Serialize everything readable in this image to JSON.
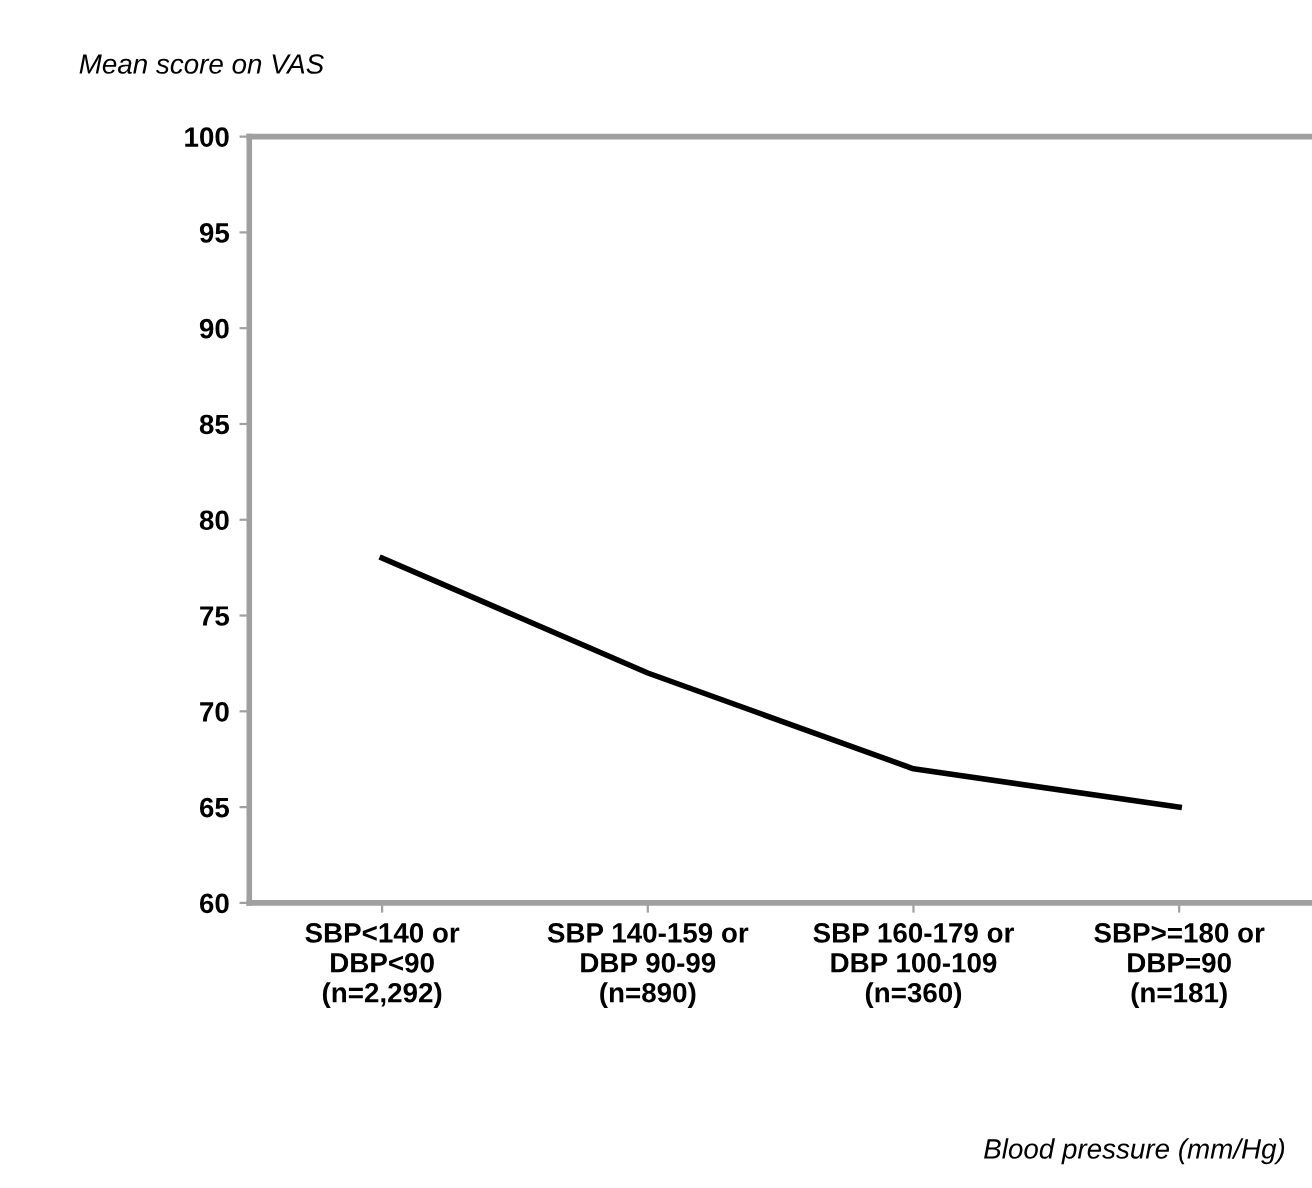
{
  "chart_data": {
    "type": "line",
    "ylabel": "Mean score on VAS",
    "xlabel": "Blood pressure (mm/Hg)",
    "categories": [
      "SBP<140 or\nDBP<90\n(n=2,292)",
      "SBP 140-159 or\nDBP 90-99\n(n=890)",
      "SBP 160-179 or\nDBP 100-109\n(n=360)",
      "SBP>=180 or\nDBP=90\n(n=181)"
    ],
    "series": [
      {
        "color": "#000000",
        "values": [
          78,
          72,
          67,
          65
        ]
      }
    ],
    "ylim": [
      60,
      100
    ],
    "yticks": [
      60,
      65,
      70,
      75,
      80,
      85,
      90,
      95,
      100
    ],
    "grid": false,
    "marker": "none",
    "line_style": "solid"
  }
}
